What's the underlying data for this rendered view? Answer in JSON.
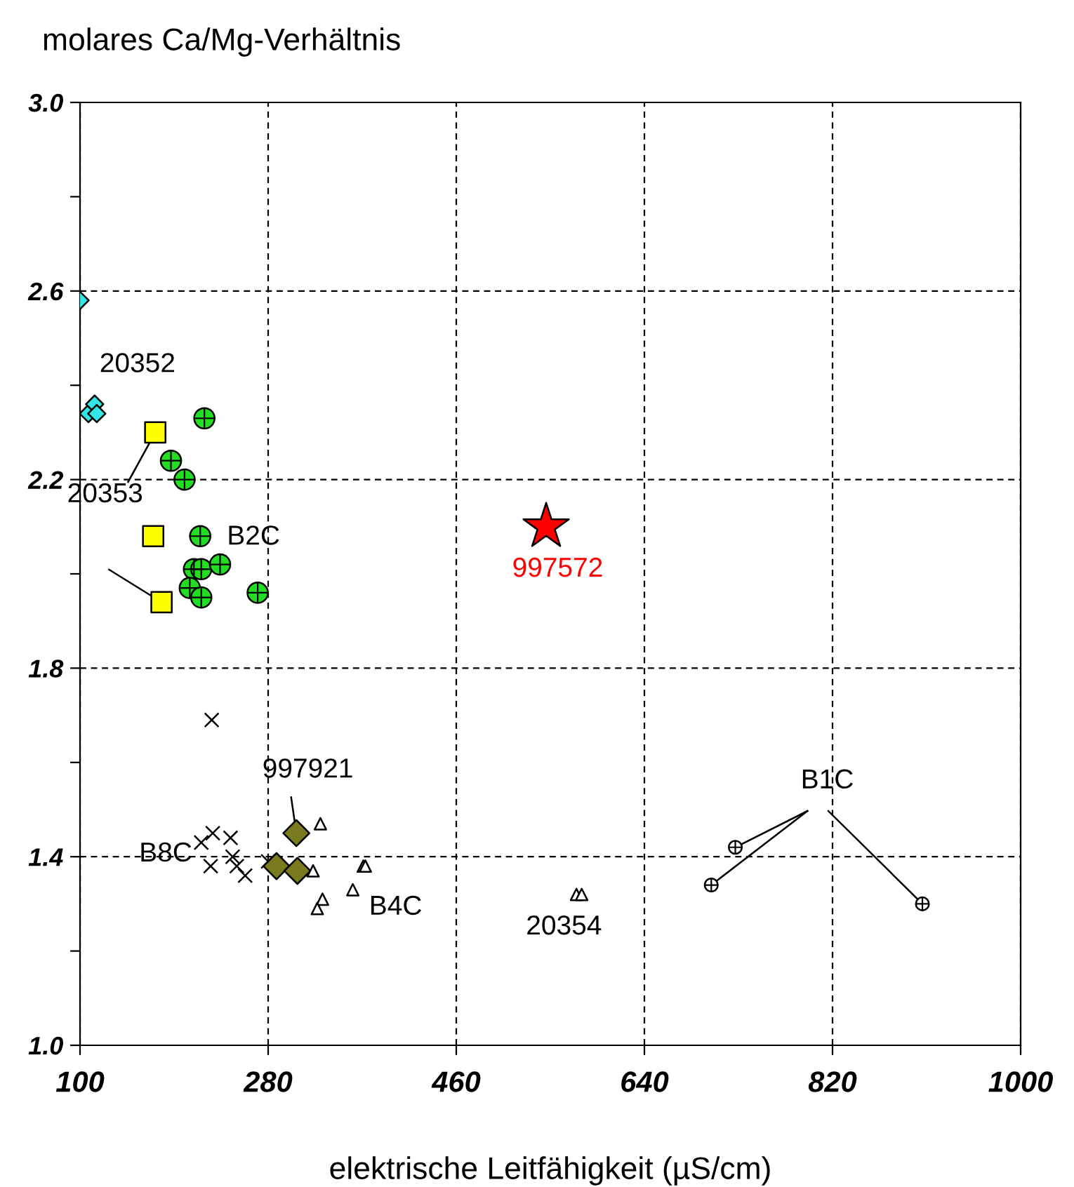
{
  "chart_data": {
    "type": "scatter",
    "ylabel": "molares Ca/Mg-Verhältnis",
    "xlabel": "elektrische Leitfähigkeit (µS/cm)",
    "xlim": [
      100,
      1000
    ],
    "xticks": [
      100,
      280,
      460,
      640,
      820,
      1000
    ],
    "ylim": [
      1.0,
      3.0
    ],
    "yticks": [
      {
        "value": 1.0,
        "label": "1.0"
      },
      {
        "value": 1.2,
        "label": null
      },
      1.4,
      {
        "value": 1.6,
        "label": null
      },
      1.8,
      {
        "value": 2.0,
        "label": null
      },
      2.2,
      {
        "value": 2.4,
        "label": null
      },
      2.6,
      {
        "value": 2.8,
        "label": null
      },
      {
        "value": 3.0,
        "label": "3.0"
      }
    ],
    "grid": true,
    "series": [
      {
        "name": "20352",
        "marker": "diamond",
        "color": "#33e6e6",
        "x": [
          100,
          108,
          114,
          116
        ],
        "values": [
          2.58,
          2.34,
          2.36,
          2.34
        ]
      },
      {
        "name": "20353",
        "marker": "square",
        "color": "#ffff00",
        "x": [
          172,
          170,
          178
        ],
        "values": [
          2.3,
          2.08,
          1.94
        ]
      },
      {
        "name": "B2C",
        "marker": "circle",
        "color": "#22dd22",
        "x": [
          219,
          187,
          200,
          215,
          209,
          216,
          234,
          205,
          216,
          270
        ],
        "values": [
          2.33,
          2.24,
          2.2,
          2.08,
          2.01,
          2.01,
          2.02,
          1.97,
          1.95,
          1.96
        ]
      },
      {
        "name": "997572",
        "marker": "star",
        "color": "#ff0000",
        "x": [
          546
        ],
        "values": [
          2.1
        ]
      },
      {
        "name": "B8C",
        "marker": "cross",
        "color": "#000000",
        "x": [
          226,
          216,
          227,
          244,
          225,
          246,
          250,
          258,
          280
        ],
        "values": [
          1.69,
          1.43,
          1.45,
          1.44,
          1.38,
          1.4,
          1.38,
          1.36,
          1.39
        ]
      },
      {
        "name": "997921",
        "marker": "diamond",
        "color": "#7a7a1e",
        "x": [
          307,
          288,
          308
        ],
        "values": [
          1.45,
          1.38,
          1.37
        ]
      },
      {
        "name": "B4C",
        "marker": "triangle",
        "color": "#ffffff",
        "x": [
          330,
          323,
          332,
          327,
          361,
          371,
          373
        ],
        "values": [
          1.47,
          1.37,
          1.31,
          1.29,
          1.33,
          1.38,
          1.38
        ]
      },
      {
        "name": "20354",
        "marker": "triangle",
        "color": "#ffffff",
        "x": [
          575,
          580
        ],
        "values": [
          1.32,
          1.32
        ]
      },
      {
        "name": "B1C",
        "marker": "circle",
        "color": "#ffffff",
        "x": [
          727,
          704,
          906
        ],
        "values": [
          1.42,
          1.34,
          1.3
        ]
      }
    ]
  }
}
